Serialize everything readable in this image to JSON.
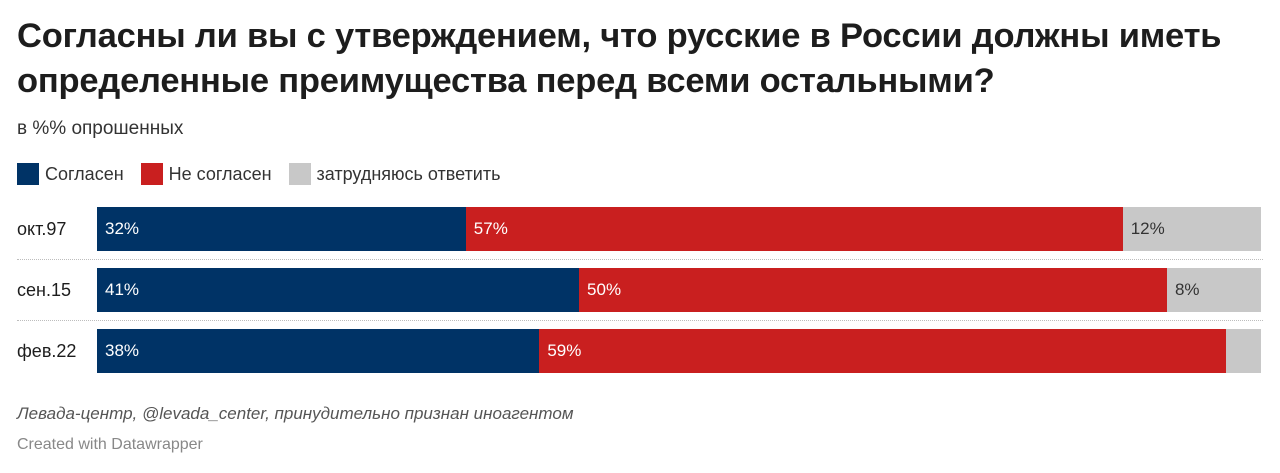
{
  "header": {
    "title": "Согласны ли вы с утверждением, что русские в России должны иметь определенные преимущества перед всеми остальными?",
    "subtitle": "в %% опрошенных"
  },
  "legend": [
    {
      "label": "Согласен",
      "color": "#003366"
    },
    {
      "label": "Не согласен",
      "color": "#c91f1f"
    },
    {
      "label": "затрудняюсь ответить",
      "color": "#c8c8c8"
    }
  ],
  "chart_data": {
    "type": "bar",
    "orientation": "horizontal-stacked-100",
    "categories": [
      "окт.97",
      "сен.15",
      "фев.22"
    ],
    "series": [
      {
        "name": "Согласен",
        "values": [
          32,
          41,
          38
        ],
        "labels": [
          "32%",
          "41%",
          "38%"
        ],
        "color": "#003366",
        "text_color": "#ffffff"
      },
      {
        "name": "Не согласен",
        "values": [
          57,
          50,
          59
        ],
        "labels": [
          "57%",
          "50%",
          "59%"
        ],
        "color": "#c91f1f",
        "text_color": "#ffffff"
      },
      {
        "name": "затрудняюсь ответить",
        "values": [
          12,
          8,
          3
        ],
        "labels": [
          "12%",
          "8%",
          ""
        ],
        "color": "#c8c8c8",
        "text_color": "#333333"
      }
    ],
    "title": "Согласны ли вы с утверждением, что русские в России должны иметь определенные преимущества перед всеми остальными?",
    "xlabel": "",
    "ylabel": "",
    "xlim": [
      0,
      100
    ]
  },
  "footer": {
    "source": "Левада-центр, @levada_center, принудительно признан иноагентом",
    "credit": "Created with Datawrapper"
  }
}
